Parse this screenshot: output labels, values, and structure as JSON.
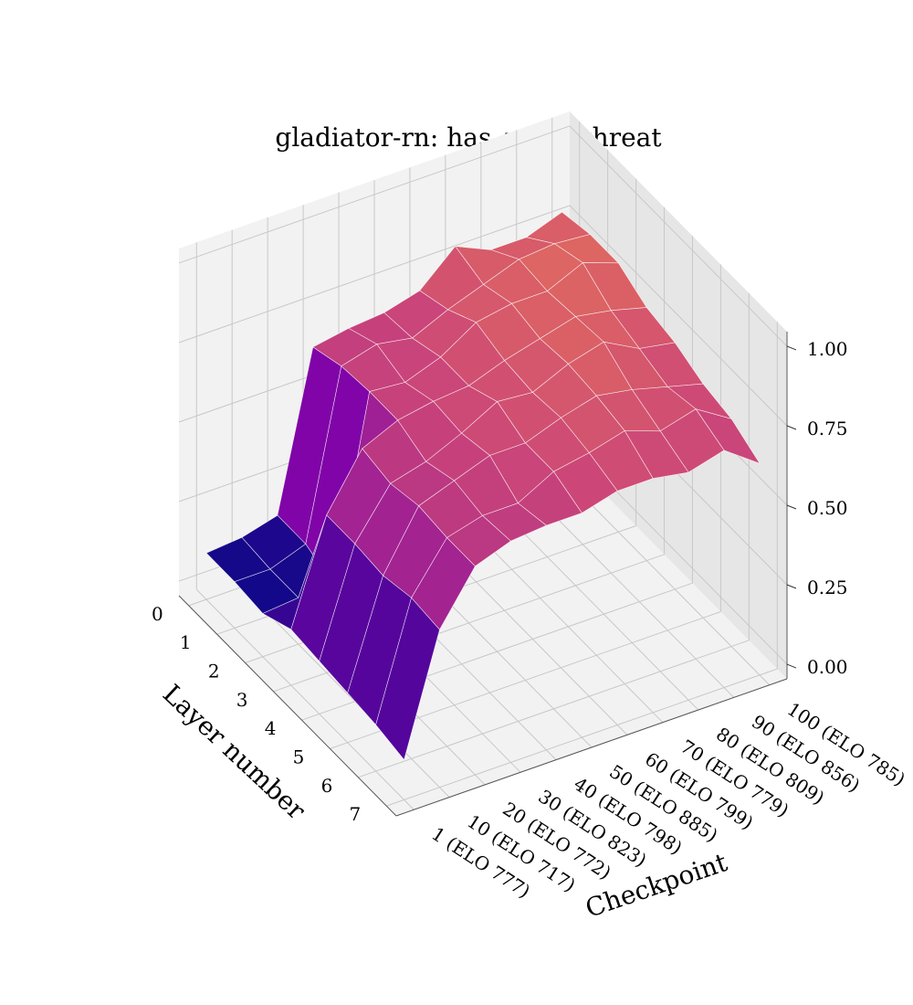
{
  "chart_data": {
    "type": "surface",
    "title": "gladiator-rn: has_mate_threat",
    "xlabel": "Layer number",
    "ylabel": "Checkpoint",
    "zlabel": "",
    "layers": [
      0,
      1,
      2,
      3,
      4,
      5,
      6,
      7
    ],
    "layer_tick_labels": [
      "0",
      "1",
      "2",
      "3",
      "4",
      "5",
      "6",
      "7"
    ],
    "checkpoints": [
      "1 (ELO 777)",
      "10 (ELO 717)",
      "20 (ELO 772)",
      "30 (ELO 823)",
      "40 (ELO 798)",
      "50 (ELO 885)",
      "60 (ELO 799)",
      "70 (ELO 779)",
      "80 (ELO 809)",
      "90 (ELO 856)",
      "100 (ELO 785)"
    ],
    "zlim": [
      0,
      1
    ],
    "z_ticks": [
      "0.00",
      "0.25",
      "0.50",
      "0.75",
      "1.00"
    ],
    "colormap": "plasma",
    "grid": true,
    "values": [
      [
        0.1,
        0.1,
        0.09,
        0.13,
        0.12,
        0.11,
        0.1,
        0.08
      ],
      [
        0.11,
        0.1,
        0.1,
        0.45,
        0.45,
        0.44,
        0.46,
        0.45
      ],
      [
        0.14,
        0.14,
        0.1,
        0.62,
        0.6,
        0.62,
        0.61,
        0.61
      ],
      [
        0.63,
        0.66,
        0.67,
        0.67,
        0.63,
        0.66,
        0.64,
        0.65
      ],
      [
        0.65,
        0.69,
        0.66,
        0.69,
        0.68,
        0.7,
        0.64,
        0.66
      ],
      [
        0.66,
        0.67,
        0.7,
        0.7,
        0.74,
        0.7,
        0.7,
        0.66
      ],
      [
        0.69,
        0.72,
        0.77,
        0.74,
        0.73,
        0.74,
        0.72,
        0.69
      ],
      [
        0.79,
        0.76,
        0.79,
        0.77,
        0.78,
        0.77,
        0.75,
        0.69
      ],
      [
        0.74,
        0.8,
        0.79,
        0.8,
        0.81,
        0.75,
        0.71,
        0.67
      ],
      [
        0.74,
        0.81,
        0.84,
        0.78,
        0.75,
        0.72,
        0.74,
        0.7
      ],
      [
        0.78,
        0.8,
        0.8,
        0.75,
        0.73,
        0.69,
        0.67,
        0.62
      ]
    ]
  }
}
